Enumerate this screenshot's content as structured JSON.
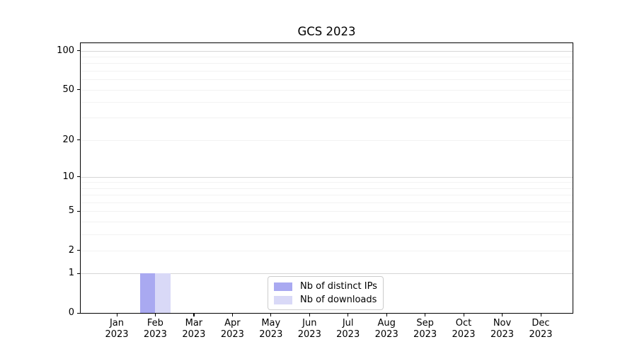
{
  "figure": {
    "title": "GCS 2023"
  },
  "chart_data": {
    "type": "bar",
    "title": "GCS 2023",
    "categories": [
      "Jan 2023",
      "Feb 2023",
      "Mar 2023",
      "Apr 2023",
      "May 2023",
      "Jun 2023",
      "Jul 2023",
      "Aug 2023",
      "Sep 2023",
      "Oct 2023",
      "Nov 2023",
      "Dec 2023"
    ],
    "x_tick_labels": [
      [
        "Jan",
        "2023"
      ],
      [
        "Feb",
        "2023"
      ],
      [
        "Mar",
        "2023"
      ],
      [
        "Apr",
        "2023"
      ],
      [
        "May",
        "2023"
      ],
      [
        "Jun",
        "2023"
      ],
      [
        "Jul",
        "2023"
      ],
      [
        "Aug",
        "2023"
      ],
      [
        "Sep",
        "2023"
      ],
      [
        "Oct",
        "2023"
      ],
      [
        "Nov",
        "2023"
      ],
      [
        "Dec",
        "2023"
      ]
    ],
    "series": [
      {
        "name": "Nb of distinct IPs",
        "color": "#a9a9f1",
        "values": [
          0,
          1,
          0,
          0,
          0,
          0,
          0,
          0,
          0,
          0,
          0,
          0
        ]
      },
      {
        "name": "Nb of downloads",
        "color": "#d9d9f7",
        "values": [
          0,
          1,
          0,
          0,
          0,
          0,
          0,
          0,
          0,
          0,
          0,
          0
        ]
      }
    ],
    "y_axis": {
      "scale": "log1p",
      "lim": [
        0,
        114.3
      ],
      "labeled_ticks": [
        0,
        1,
        2,
        5,
        10,
        20,
        50,
        100
      ],
      "major_gridlines": [
        1,
        10,
        100
      ],
      "minor_gridlines": [
        2,
        3,
        4,
        5,
        6,
        7,
        8,
        9,
        20,
        30,
        40,
        50,
        60,
        70,
        80,
        90
      ]
    },
    "legend": {
      "position": "lower center",
      "entries": [
        "Nb of distinct IPs",
        "Nb of downloads"
      ]
    },
    "grid": true,
    "colors": {
      "major_grid": "#d6d6d6",
      "minor_grid": "#f2f2f2",
      "spine": "#000000",
      "text": "#000000"
    }
  }
}
